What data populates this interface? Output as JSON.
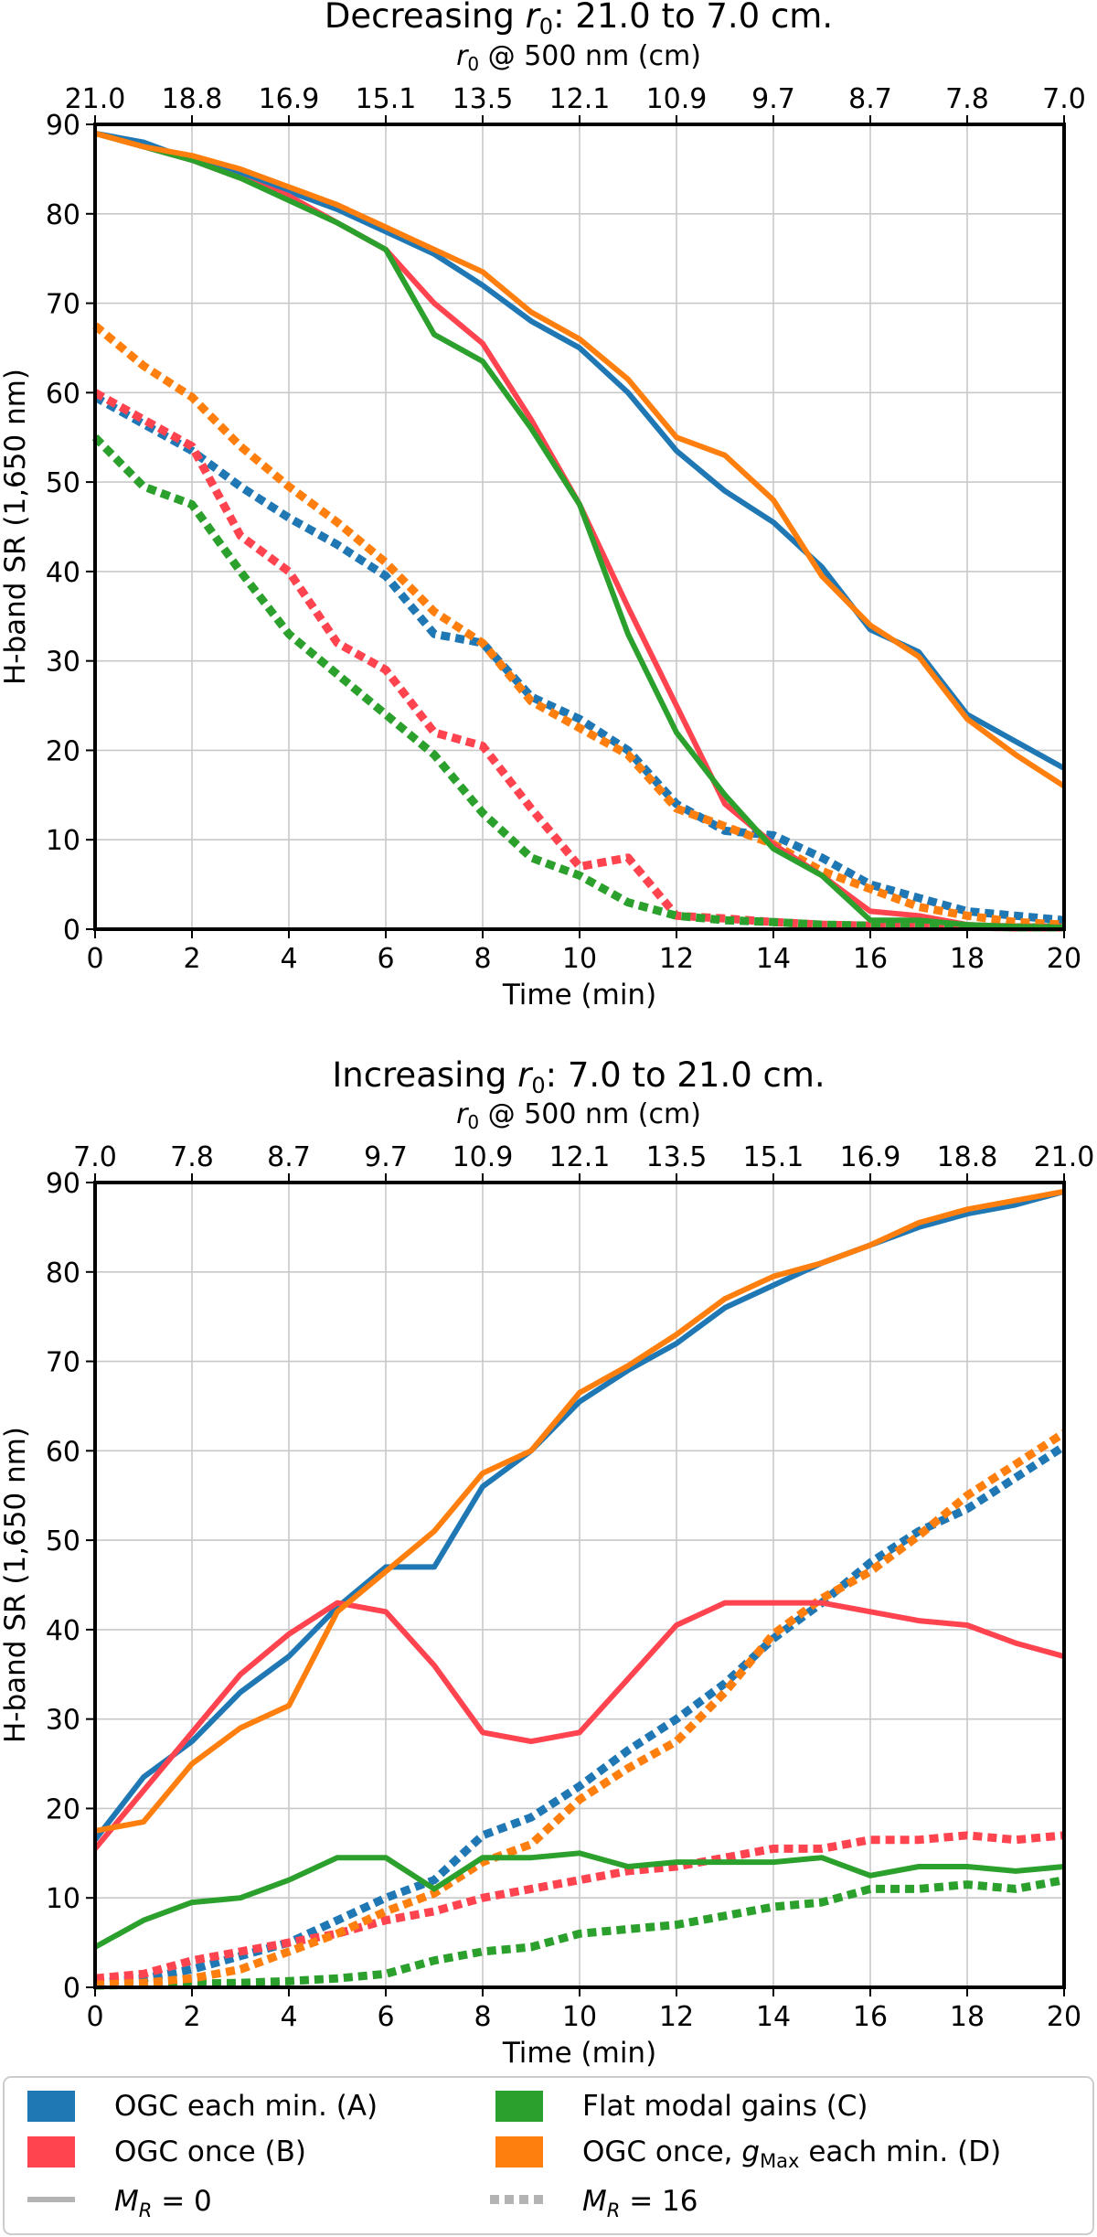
{
  "legend": {
    "entries": [
      {
        "label": "OGC each min. (A)",
        "color": "#1f77b4"
      },
      {
        "label": "OGC once (B)",
        "color": "#ff4450"
      },
      {
        "label": "Flat modal gains (C)",
        "color": "#2ca02c"
      },
      {
        "label": "OGC once, gMax each min. (D)",
        "color": "#ff7f0e"
      }
    ],
    "styles": [
      {
        "label": "MR = 0",
        "dash": false
      },
      {
        "label": "MR = 16",
        "dash": true
      }
    ],
    "style_color": "#b3b3b3"
  },
  "chart_data": [
    {
      "type": "line",
      "title": "Decreasing r0: 21.0 to 7.0 cm.",
      "xlabel": "Time (min)",
      "ylabel": "H-band SR (1,650 nm)",
      "top_xlabel": "r0 @ 500 nm (cm)",
      "xlim": [
        0,
        20
      ],
      "ylim": [
        0,
        90
      ],
      "xticks": [
        0,
        2,
        4,
        6,
        8,
        10,
        12,
        14,
        16,
        18,
        20
      ],
      "yticks": [
        0,
        10,
        20,
        30,
        40,
        50,
        60,
        70,
        80,
        90
      ],
      "top_ticks": [
        "21.0",
        "18.8",
        "16.9",
        "15.1",
        "13.5",
        "12.1",
        "10.9",
        "9.7",
        "8.7",
        "7.8",
        "7.0"
      ],
      "grid": true,
      "x": [
        0,
        1,
        2,
        3,
        4,
        5,
        6,
        7,
        8,
        9,
        10,
        11,
        12,
        13,
        14,
        15,
        16,
        17,
        18,
        19,
        20
      ],
      "series": [
        {
          "name": "OGC each min. (A)",
          "style": "MR = 0",
          "color": "#1f77b4",
          "dashed": false,
          "values": [
            89,
            88,
            86,
            84.5,
            82.5,
            80.5,
            78,
            75.5,
            72,
            68,
            65,
            60,
            53.5,
            49,
            45.5,
            40.5,
            33.5,
            31,
            24,
            21,
            18
          ]
        },
        {
          "name": "OGC once (B)",
          "style": "MR = 0",
          "color": "#ff4450",
          "dashed": false,
          "values": [
            89,
            87.5,
            86,
            84,
            82,
            79,
            76,
            70,
            65.5,
            57,
            47.5,
            36,
            25,
            14,
            9.5,
            6,
            2,
            1.5,
            0.5,
            0.3,
            0.2
          ]
        },
        {
          "name": "Flat modal gains (C)",
          "style": "MR = 0",
          "color": "#2ca02c",
          "dashed": false,
          "values": [
            89,
            87.5,
            86,
            84,
            81.5,
            79,
            76,
            66.5,
            63.5,
            56,
            47.5,
            33,
            22,
            15,
            9,
            6,
            1,
            1,
            0.5,
            0.3,
            0.2
          ]
        },
        {
          "name": "OGC once, gMax each min. (D)",
          "style": "MR = 0",
          "color": "#ff7f0e",
          "dashed": false,
          "values": [
            89,
            87.5,
            86.5,
            85,
            83,
            81,
            78.5,
            76,
            73.5,
            69,
            66,
            61.5,
            55,
            53,
            48,
            39.5,
            34,
            30.5,
            23.5,
            19.5,
            16
          ]
        },
        {
          "name": "OGC each min. (A)",
          "style": "MR = 16",
          "color": "#1f77b4",
          "dashed": true,
          "values": [
            59.5,
            56.5,
            53.5,
            49.5,
            46,
            43,
            39.5,
            33,
            32,
            26,
            23.5,
            20,
            14,
            11,
            10.5,
            8,
            5,
            3.5,
            2,
            1.5,
            1
          ]
        },
        {
          "name": "OGC once (B)",
          "style": "MR = 16",
          "color": "#ff4450",
          "dashed": true,
          "values": [
            60,
            57,
            54,
            44,
            40,
            32,
            29,
            22,
            20.5,
            13.5,
            7,
            8,
            1.5,
            1.2,
            0.8,
            0.5,
            0.4,
            0.3,
            0.3,
            0.2,
            0.2
          ]
        },
        {
          "name": "Flat modal gains (C)",
          "style": "MR = 16",
          "color": "#2ca02c",
          "dashed": true,
          "values": [
            55,
            49.5,
            47.5,
            40,
            33,
            28.5,
            24,
            19.5,
            13,
            8,
            6,
            3,
            1.5,
            1,
            0.8,
            0.5,
            0.4,
            0.3,
            0.3,
            0.2,
            0.2
          ]
        },
        {
          "name": "OGC once, gMax each min. (D)",
          "style": "MR = 16",
          "color": "#ff7f0e",
          "dashed": true,
          "values": [
            67.5,
            63,
            59.5,
            54,
            49.5,
            45.5,
            41,
            35.5,
            32,
            25.5,
            22.5,
            19.5,
            13.5,
            11.5,
            9.5,
            6.5,
            4.5,
            2.5,
            1.5,
            0.8,
            0.5
          ]
        }
      ]
    },
    {
      "type": "line",
      "title": "Increasing r0: 7.0 to 21.0 cm.",
      "xlabel": "Time (min)",
      "ylabel": "H-band SR (1,650 nm)",
      "top_xlabel": "r0 @ 500 nm (cm)",
      "xlim": [
        0,
        20
      ],
      "ylim": [
        0,
        90
      ],
      "xticks": [
        0,
        2,
        4,
        6,
        8,
        10,
        12,
        14,
        16,
        18,
        20
      ],
      "yticks": [
        0,
        10,
        20,
        30,
        40,
        50,
        60,
        70,
        80,
        90
      ],
      "top_ticks": [
        "7.0",
        "7.8",
        "8.7",
        "9.7",
        "10.9",
        "12.1",
        "13.5",
        "15.1",
        "16.9",
        "18.8",
        "21.0"
      ],
      "grid": true,
      "x": [
        0,
        1,
        2,
        3,
        4,
        5,
        6,
        7,
        8,
        9,
        10,
        11,
        12,
        13,
        14,
        15,
        16,
        17,
        18,
        19,
        20
      ],
      "series": [
        {
          "name": "OGC each min. (A)",
          "style": "MR = 0",
          "color": "#1f77b4",
          "dashed": false,
          "values": [
            16.5,
            23.5,
            27.5,
            33,
            37,
            42.5,
            47,
            47,
            56,
            60,
            65.5,
            69,
            72,
            76,
            78.5,
            81,
            83,
            85,
            86.5,
            87.5,
            89
          ]
        },
        {
          "name": "OGC once (B)",
          "style": "MR = 0",
          "color": "#ff4450",
          "dashed": false,
          "values": [
            15.5,
            22,
            28.5,
            35,
            39.5,
            43,
            42,
            36,
            28.5,
            27.5,
            28.5,
            34.5,
            40.5,
            43,
            43,
            43,
            42,
            41,
            40.5,
            38.5,
            37
          ]
        },
        {
          "name": "Flat modal gains (C)",
          "style": "MR = 0",
          "color": "#2ca02c",
          "dashed": false,
          "values": [
            4.5,
            7.5,
            9.5,
            10,
            12,
            14.5,
            14.5,
            11,
            14.5,
            14.5,
            15,
            13.5,
            14,
            14,
            14,
            14.5,
            12.5,
            13.5,
            13.5,
            13,
            13.5
          ]
        },
        {
          "name": "OGC once, gMax each min. (D)",
          "style": "MR = 0",
          "color": "#ff7f0e",
          "dashed": false,
          "values": [
            17.5,
            18.5,
            25,
            29,
            31.5,
            42,
            46.5,
            51,
            57.5,
            60,
            66.5,
            69.5,
            73,
            77,
            79.5,
            81,
            83,
            85.5,
            87,
            88,
            89
          ]
        },
        {
          "name": "OGC each min. (A)",
          "style": "MR = 16",
          "color": "#1f77b4",
          "dashed": true,
          "values": [
            0.5,
            1,
            2,
            3.5,
            5,
            7.5,
            10,
            12,
            17,
            19,
            22.5,
            26.5,
            30,
            34,
            39,
            43,
            47.5,
            51,
            53.5,
            57,
            60.5
          ]
        },
        {
          "name": "OGC once (B)",
          "style": "MR = 16",
          "color": "#ff4450",
          "dashed": true,
          "values": [
            1,
            1.5,
            3,
            4,
            5,
            6,
            7.5,
            8.5,
            10,
            11,
            12,
            13,
            13.5,
            14.5,
            15.5,
            15.5,
            16.5,
            16.5,
            17,
            16.5,
            17
          ]
        },
        {
          "name": "Flat modal gains (C)",
          "style": "MR = 16",
          "color": "#2ca02c",
          "dashed": true,
          "values": [
            0.2,
            0.3,
            0.4,
            0.5,
            0.7,
            1,
            1.5,
            3,
            4,
            4.5,
            6,
            6.5,
            7,
            8,
            9,
            9.5,
            11,
            11,
            11.5,
            11,
            12
          ]
        },
        {
          "name": "OGC once, gMax each min. (D)",
          "style": "MR = 16",
          "color": "#ff7f0e",
          "dashed": true,
          "values": [
            0.3,
            0.5,
            1,
            2,
            4,
            6,
            8.5,
            10.5,
            14,
            16,
            21,
            24.5,
            27.5,
            33,
            39.5,
            43.5,
            46.5,
            50.5,
            55,
            58.5,
            62
          ]
        }
      ]
    }
  ]
}
